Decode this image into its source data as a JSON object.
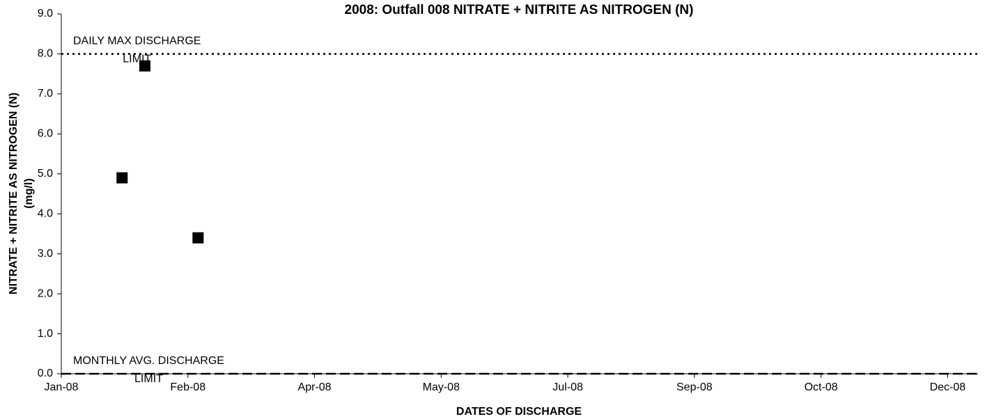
{
  "chart_data": {
    "type": "scatter",
    "title": "2008: Outfall 008 NITRATE + NITRITE AS NITROGEN (N)",
    "x_label": "DATES OF DISCHARGE",
    "y_label": [
      "NITRATE + NITRITE AS NITROGEN (N)",
      "(mg/l)"
    ],
    "series": [
      {
        "name": "NITRATE + NITRITE AS NITROGEN (N)",
        "color": "#000000",
        "x": [
          24,
          33,
          54
        ],
        "values": [
          4.9,
          7.7,
          3.4
        ]
      }
    ],
    "limits": [
      {
        "text": [
          "DAILY MAX DISCHARGE",
          "LIMIT"
        ],
        "value": 8,
        "style": "dotted"
      },
      {
        "text": [
          "MONTHLY AVG. DISCHARGE",
          "LIMIT"
        ],
        "value": 0,
        "style": "dashed"
      }
    ],
    "xlim": [
      0,
      362
    ],
    "xticks": [
      {
        "value": 0,
        "label": "Jan-08"
      },
      {
        "value": 50,
        "label": "Feb-08"
      },
      {
        "value": 100,
        "label": "Apr-08"
      },
      {
        "value": 150,
        "label": "May-08"
      },
      {
        "value": 200,
        "label": "Jul-08"
      },
      {
        "value": 250,
        "label": "Sep-08"
      },
      {
        "value": 300,
        "label": "Oct-08"
      },
      {
        "value": 350,
        "label": "Dec-08"
      }
    ],
    "ylim": [
      0,
      9
    ],
    "yticks": [
      {
        "value": 0,
        "label": "0.0"
      },
      {
        "value": 1,
        "label": "1.0"
      },
      {
        "value": 2,
        "label": "2.0"
      },
      {
        "value": 3,
        "label": "3.0"
      },
      {
        "value": 4,
        "label": "4.0"
      },
      {
        "value": 5,
        "label": "5.0"
      },
      {
        "value": 6,
        "label": "6.0"
      },
      {
        "value": 7,
        "label": "7.0"
      },
      {
        "value": 8,
        "label": "8.0"
      },
      {
        "value": 9,
        "label": "9.0"
      }
    ],
    "grid": false
  }
}
